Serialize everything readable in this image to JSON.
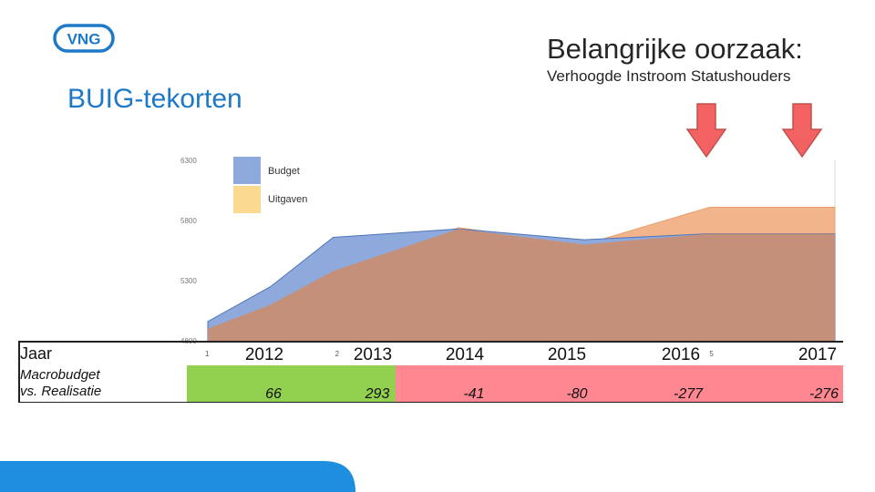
{
  "logo": {
    "text": "VNG"
  },
  "header": {
    "title": "Belangrijke oorzaak:",
    "subtitle": "Verhoogde Instroom Statushouders"
  },
  "page_title": "BUIG-tekorten",
  "colors": {
    "budget_fill": "#8eaadc",
    "budget_line": "#4f74b8",
    "uitgaven_fill": "#f2b48a",
    "legend_uitgaven": "#fbd98f",
    "overlap_fill": "#c4907a",
    "positive_cell": "#92d050",
    "negative_cell": "#ff8791",
    "arrow": "#f26262",
    "title_blue": "#1e78c8",
    "logo_blue": "#1e7ac8"
  },
  "table": {
    "year_header": "Jaar",
    "diff_header_line1": "Macrobudget",
    "diff_header_line2": "vs. Realisatie",
    "rows": [
      {
        "year": "2012",
        "diff": "66",
        "status": "positive"
      },
      {
        "year": "2013",
        "diff": "293",
        "status": "positive"
      },
      {
        "year": "2014",
        "diff": "-41",
        "status": "negative"
      },
      {
        "year": "2015",
        "diff": "-80",
        "status": "negative"
      },
      {
        "year": "2016",
        "diff": "-277",
        "status": "negative"
      },
      {
        "year": "2017",
        "diff": "-276",
        "status": "negative"
      }
    ]
  },
  "chart_data": {
    "type": "area",
    "title": "",
    "xlabel": "",
    "ylabel": "",
    "x": [
      1,
      1.5,
      2,
      3,
      4,
      5,
      6
    ],
    "x_tick_labels": [
      "1",
      "2",
      "5"
    ],
    "x_tick_positions": [
      1,
      2,
      5
    ],
    "y_ticks": [
      "4800",
      "5300",
      "5800",
      "6300"
    ],
    "y_tick_values": [
      4800,
      5300,
      5800,
      6300
    ],
    "ylim": [
      4800,
      6300
    ],
    "legend": [
      "Budget",
      "Uitgaven"
    ],
    "series": [
      {
        "name": "Budget",
        "values": [
          4960,
          5250,
          5660,
          5730,
          5640,
          5690,
          5690
        ]
      },
      {
        "name": "Uitgaven",
        "values": [
          4900,
          5100,
          5380,
          5740,
          5600,
          5910,
          5910
        ]
      }
    ]
  }
}
